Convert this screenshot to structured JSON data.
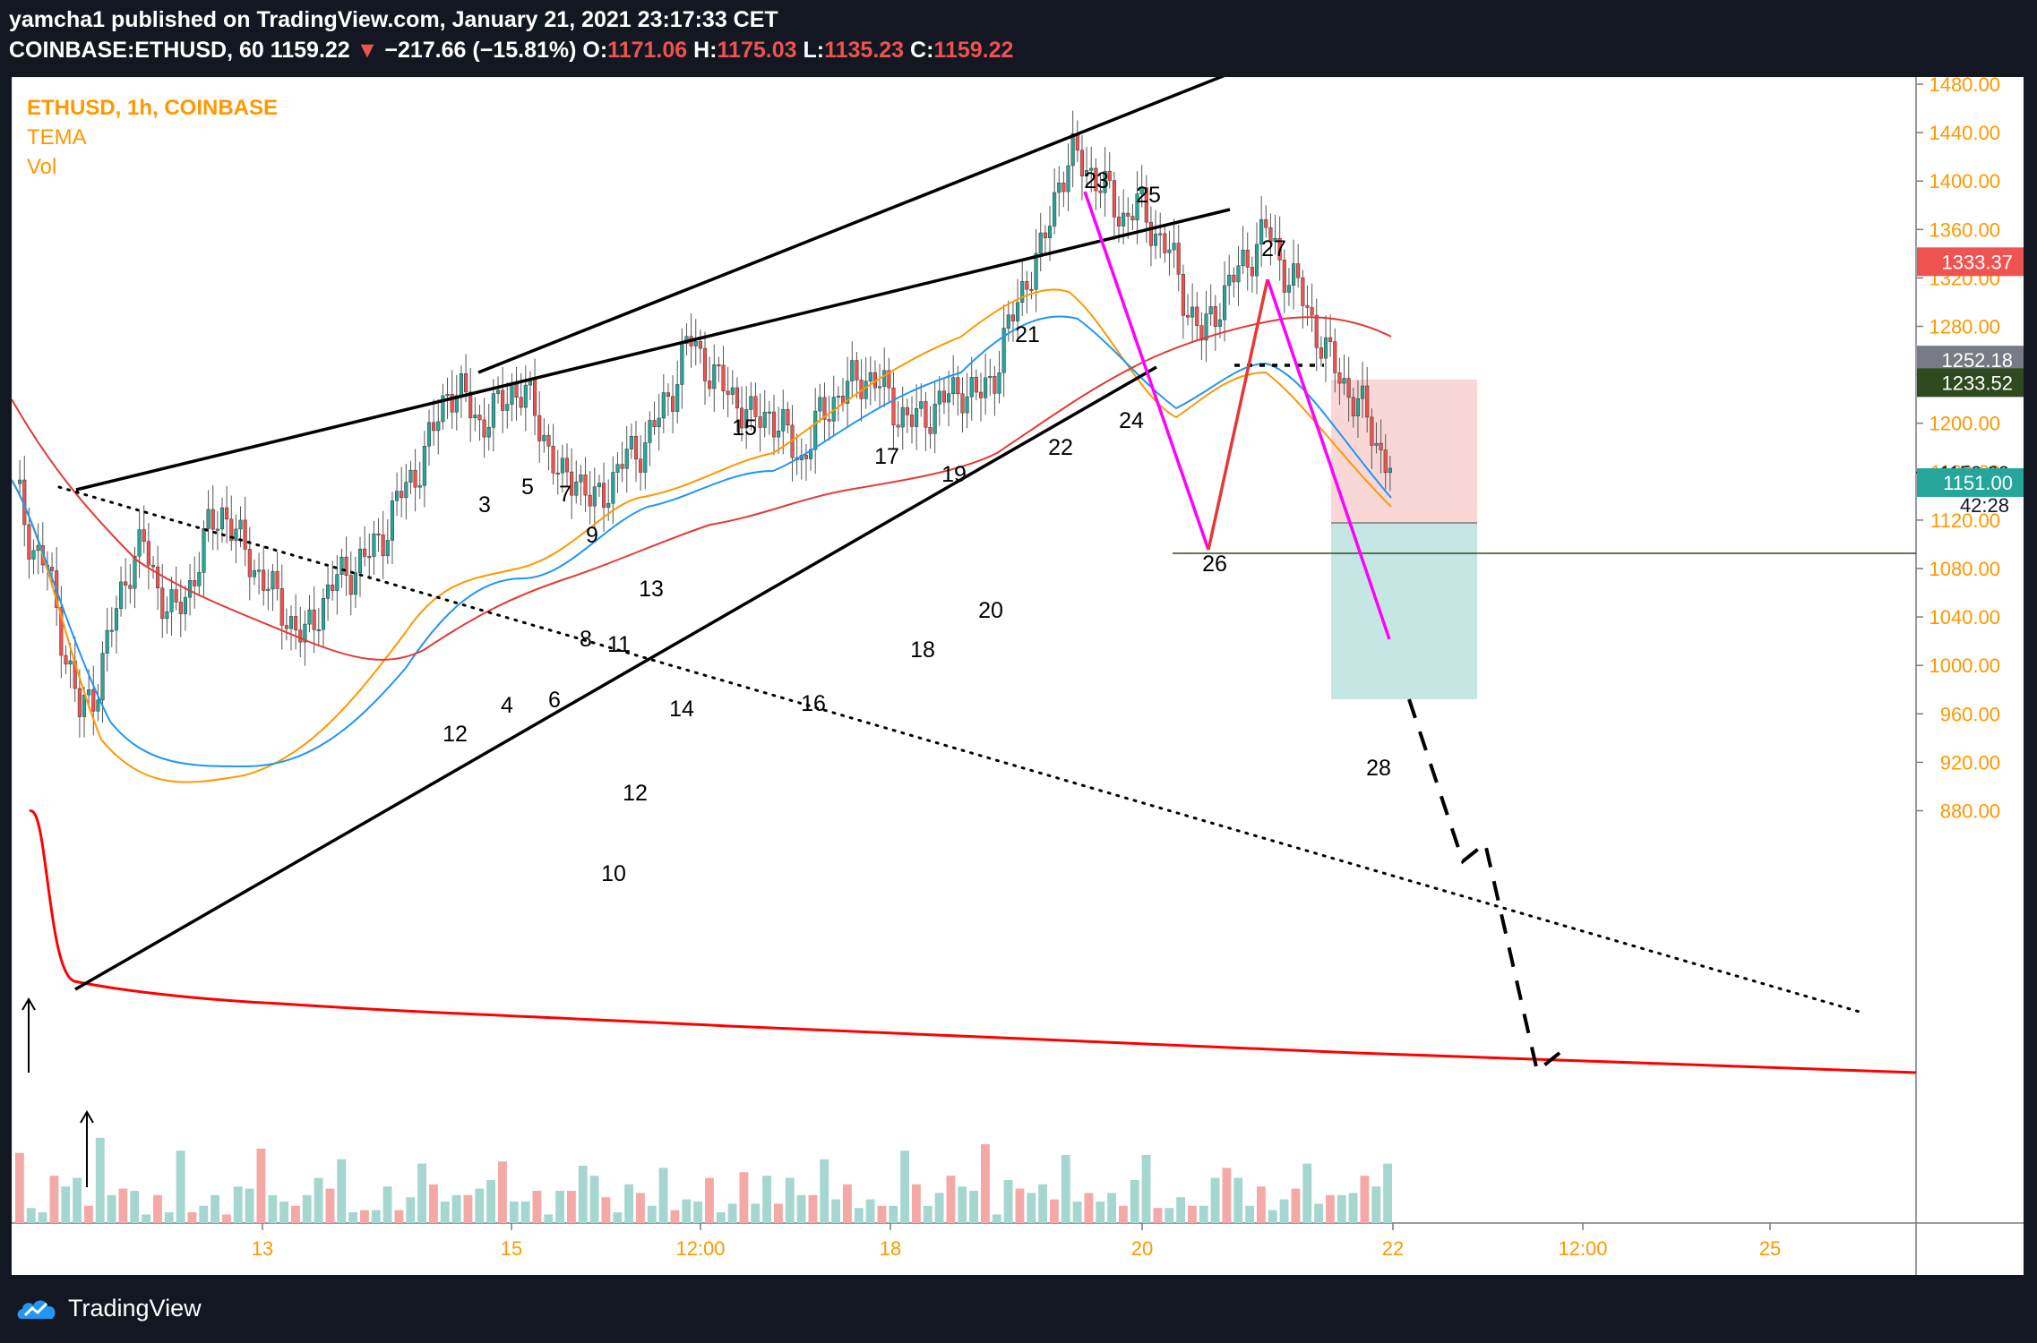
{
  "header": {
    "publisher": "yamcha1 published on TradingView.com, January 21, 2021 23:17:33 CET",
    "symbol": "COINBASE:ETHUSD, 60",
    "last": "1159.22",
    "change": "−217.66 (−15.81%)",
    "o_label": "O:",
    "o_value": "1171.06",
    "h_label": "H:",
    "h_value": "1175.03",
    "l_label": "L:",
    "l_value": "1135.23",
    "c_label": "C:",
    "c_value": "1159.22"
  },
  "legend": {
    "title": "ETHUSD, 1h, COINBASE",
    "ind1": "TEMA",
    "ind2": "Vol"
  },
  "footer": {
    "brand": "TradingView"
  },
  "colors": {
    "up": "#26a69a",
    "down": "#ef5350",
    "axis_text": "#ff9800",
    "ema_fast": "#ff9800",
    "ema_mid": "#2196f3",
    "ema_slow": "#e53935",
    "ma_long": "#ff0000",
    "magenta": "#ff00ff",
    "stop_zone": "#f8cccc",
    "target_zone": "#b2dfdb"
  },
  "chart_data": {
    "type": "candlestick",
    "symbol": "COINBASE:ETHUSD",
    "timeframe": "1h",
    "ylim": [
      860,
      1500
    ],
    "y_ticks": [
      "1480.00",
      "1440.00",
      "1400.00",
      "1360.00",
      "1320.00",
      "1280.00",
      "1240.00",
      "1200.00",
      "1160.00",
      "1120.00",
      "1080.00",
      "1040.00",
      "1000.00",
      "960.00",
      "920.00",
      "880.00"
    ],
    "y_tick_values": [
      1480,
      1440,
      1400,
      1360,
      1320,
      1280,
      1240,
      1200,
      1160,
      1120,
      1080,
      1040,
      1000,
      960,
      920,
      880
    ],
    "x_ticks": [
      "13",
      "15",
      "12:00",
      "18",
      "20",
      "22",
      "12:00",
      "25"
    ],
    "price_tags": [
      {
        "label": "1333.37",
        "value": 1333.37,
        "color": "#ef5350"
      },
      {
        "label": "1252.18",
        "value": 1252.18,
        "color": "#787b86"
      },
      {
        "label": "1233.52",
        "value": 1233.52,
        "color": "#2f4a1f"
      },
      {
        "label": "1159.22",
        "value": 1159.22,
        "color": "#ffffff"
      },
      {
        "label": "1151.00",
        "value": 1151.0,
        "color": "#26a69a"
      }
    ],
    "countdown": "42:28",
    "wave_labels": [
      "3",
      "5",
      "7",
      "9",
      "8",
      "11",
      "12",
      "4",
      "6",
      "12",
      "10",
      "13",
      "14",
      "15",
      "16",
      "17",
      "18",
      "19",
      "20",
      "21",
      "22",
      "23",
      "24",
      "25",
      "26",
      "27",
      "28"
    ],
    "close_path": [
      [
        0,
        1150
      ],
      [
        6,
        1100
      ],
      [
        12,
        1080
      ],
      [
        18,
        1020
      ],
      [
        24,
        960
      ],
      [
        30,
        980
      ],
      [
        36,
        1030
      ],
      [
        42,
        1080
      ],
      [
        48,
        1100
      ],
      [
        54,
        1060
      ],
      [
        60,
        1040
      ],
      [
        66,
        1070
      ],
      [
        72,
        1110
      ],
      [
        78,
        1130
      ],
      [
        84,
        1100
      ],
      [
        90,
        1080
      ],
      [
        96,
        1060
      ],
      [
        102,
        1040
      ],
      [
        108,
        1020
      ],
      [
        114,
        1050
      ],
      [
        120,
        1070
      ],
      [
        126,
        1080
      ],
      [
        132,
        1090
      ],
      [
        138,
        1110
      ],
      [
        144,
        1140
      ],
      [
        150,
        1160
      ],
      [
        156,
        1190
      ],
      [
        162,
        1230
      ],
      [
        168,
        1220
      ],
      [
        174,
        1200
      ],
      [
        180,
        1210
      ],
      [
        186,
        1230
      ],
      [
        192,
        1220
      ],
      [
        198,
        1190
      ],
      [
        204,
        1150
      ],
      [
        210,
        1160
      ],
      [
        216,
        1130
      ],
      [
        222,
        1150
      ],
      [
        228,
        1170
      ],
      [
        234,
        1180
      ],
      [
        240,
        1200
      ],
      [
        246,
        1230
      ],
      [
        252,
        1270
      ],
      [
        258,
        1250
      ],
      [
        264,
        1230
      ],
      [
        270,
        1220
      ],
      [
        276,
        1200
      ],
      [
        282,
        1210
      ],
      [
        288,
        1190
      ],
      [
        294,
        1170
      ],
      [
        300,
        1200
      ],
      [
        306,
        1220
      ],
      [
        312,
        1230
      ],
      [
        318,
        1240
      ],
      [
        324,
        1230
      ],
      [
        330,
        1210
      ],
      [
        336,
        1200
      ],
      [
        342,
        1210
      ],
      [
        348,
        1220
      ],
      [
        354,
        1230
      ],
      [
        360,
        1220
      ],
      [
        366,
        1240
      ],
      [
        372,
        1280
      ],
      [
        378,
        1320
      ],
      [
        384,
        1340
      ],
      [
        390,
        1400
      ],
      [
        396,
        1420
      ],
      [
        402,
        1410
      ],
      [
        408,
        1390
      ],
      [
        414,
        1370
      ],
      [
        420,
        1380
      ],
      [
        426,
        1360
      ],
      [
        432,
        1340
      ],
      [
        438,
        1300
      ],
      [
        444,
        1270
      ],
      [
        450,
        1300
      ],
      [
        456,
        1320
      ],
      [
        462,
        1340
      ],
      [
        468,
        1360
      ],
      [
        474,
        1330
      ],
      [
        480,
        1310
      ],
      [
        486,
        1280
      ],
      [
        492,
        1250
      ],
      [
        498,
        1230
      ],
      [
        504,
        1210
      ],
      [
        510,
        1180
      ],
      [
        516,
        1160
      ]
    ],
    "volume": [
      16,
      7,
      5,
      22,
      17,
      21,
      8,
      23,
      13,
      16,
      15,
      4,
      13,
      5,
      17,
      5,
      8,
      13,
      4,
      17,
      16,
      18,
      13,
      10,
      8,
      13,
      21,
      16,
      13,
      5,
      6,
      6,
      17,
      6,
      12,
      11,
      18,
      10,
      13,
      13,
      16,
      20,
      12,
      10,
      10,
      15,
      4,
      15,
      15,
      10,
      22,
      12,
      5,
      18,
      14,
      8,
      9,
      6,
      11,
      10,
      21,
      5,
      9,
      7,
      9,
      22,
      9,
      21,
      13,
      13,
      13,
      11,
      18,
      7,
      11,
      8,
      8,
      17,
      18,
      8,
      14,
      22,
      17,
      15,
      20,
      4,
      20,
      16,
      14,
      18,
      11,
      15,
      10,
      14,
      10,
      14,
      8,
      20,
      15,
      7,
      7,
      12,
      8,
      8,
      21,
      9,
      21,
      8,
      17,
      6,
      11,
      16,
      11,
      9,
      13,
      13,
      14,
      22,
      17,
      11
    ]
  }
}
